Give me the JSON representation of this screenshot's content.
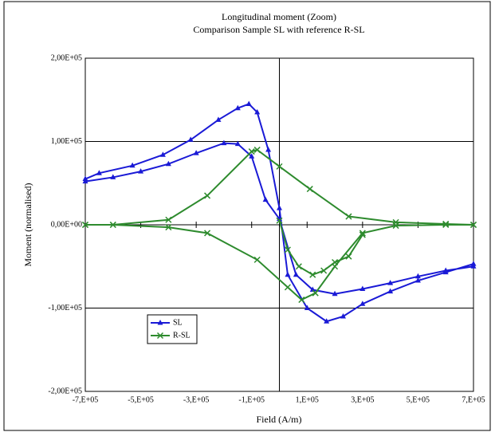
{
  "chart_data": {
    "type": "line",
    "title": "Longitudinal moment (Zoom)",
    "subtitle": "Comparison Sample SL with reference R-SL",
    "x_label": "Field (A/m)",
    "y_label": "Moment (normalised)",
    "xlim": [
      -700000,
      700000
    ],
    "ylim": [
      -200000,
      200000
    ],
    "xticks": [
      {
        "value": -700000,
        "label": "-7,E+05"
      },
      {
        "value": -500000,
        "label": "-5,E+05"
      },
      {
        "value": -300000,
        "label": "-3,E+05"
      },
      {
        "value": -100000,
        "label": "-1,E+05"
      },
      {
        "value": 100000,
        "label": "1,E+05"
      },
      {
        "value": 300000,
        "label": "3,E+05"
      },
      {
        "value": 500000,
        "label": "5,E+05"
      },
      {
        "value": 700000,
        "label": "7,E+05"
      }
    ],
    "yticks": [
      {
        "value": -200000,
        "label": "-2,00E+05"
      },
      {
        "value": -100000,
        "label": "-1,00E+05"
      },
      {
        "value": 0,
        "label": "0,00E+00"
      },
      {
        "value": 100000,
        "label": "1,00E+05"
      },
      {
        "value": 200000,
        "label": "2,00E+05"
      }
    ],
    "grid": true,
    "legend": "lower left",
    "series": [
      {
        "name": "SL",
        "color": "#1a1ad6",
        "marker": "triangle",
        "x": [
          -700000,
          -650000,
          -530000,
          -420000,
          -320000,
          -220000,
          -150000,
          -110000,
          -80000,
          -40000,
          0,
          30000,
          100000,
          170000,
          230000,
          300000,
          400000,
          500000,
          600000,
          700000,
          null,
          -700000,
          -600000,
          -500000,
          -400000,
          -300000,
          -200000,
          -150000,
          -100000,
          -50000,
          0,
          60000,
          120000,
          200000,
          300000,
          400000,
          500000,
          600000,
          700000
        ],
        "values": [
          55000,
          62000,
          71000,
          84000,
          102000,
          126000,
          140000,
          145000,
          135000,
          90000,
          20000,
          -60000,
          -100000,
          -116000,
          -110000,
          -95000,
          -80000,
          -67000,
          -57000,
          -47000,
          null,
          52000,
          57000,
          64000,
          73000,
          86000,
          98000,
          97000,
          82000,
          30000,
          7000,
          -60000,
          -78000,
          -83000,
          -77000,
          -70000,
          -62000,
          -55000,
          -50000
        ]
      },
      {
        "name": "R-SL",
        "color": "#2e8b2e",
        "marker": "x",
        "x": [
          -700000,
          -600000,
          -400000,
          -260000,
          -100000,
          -80000,
          0,
          110000,
          250000,
          420000,
          600000,
          700000,
          null,
          -700000,
          -600000,
          -400000,
          -260000,
          -80000,
          30000,
          80000,
          130000,
          200000,
          300000,
          420000,
          600000,
          700000,
          null,
          0,
          30000,
          70000,
          120000,
          160000,
          200000,
          250000,
          300000
        ],
        "values": [
          0,
          0,
          6000,
          35000,
          88000,
          90000,
          70000,
          43000,
          10000,
          3000,
          1000,
          0,
          null,
          0,
          0,
          -3000,
          -10000,
          -42000,
          -75000,
          -90000,
          -82000,
          -50000,
          -10000,
          -1000,
          0,
          0,
          null,
          5000,
          -30000,
          -50000,
          -60000,
          -55000,
          -45000,
          -38000,
          -12000
        ]
      }
    ]
  }
}
